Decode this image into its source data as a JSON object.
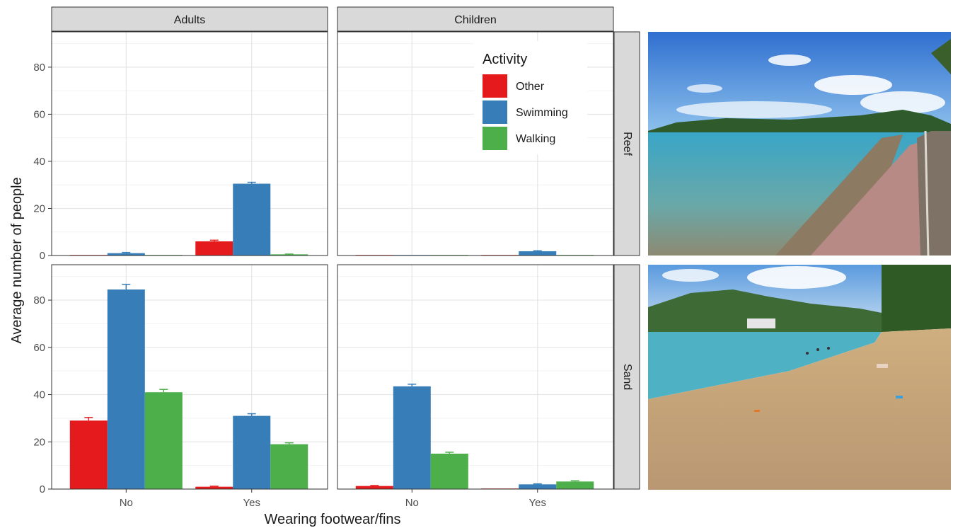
{
  "chart_data": {
    "type": "bar",
    "ylabel": "Average number of people",
    "xlabel": "Wearing footwear/fins",
    "categories": [
      "No",
      "Yes"
    ],
    "column_facets": [
      "Adults",
      "Children"
    ],
    "row_facets": [
      "Reef",
      "Sand"
    ],
    "ylim": [
      0,
      95
    ],
    "yticks": [
      0,
      20,
      40,
      60,
      80
    ],
    "grid": true,
    "legend": {
      "title": "Activity",
      "placement": "inside-top-right",
      "entries": [
        "Other",
        "Swimming",
        "Walking"
      ]
    },
    "colors": {
      "Other": "#e41a1c",
      "Swimming": "#377eb8",
      "Walking": "#4daf4a"
    },
    "panels": [
      {
        "row": "Reef",
        "col": "Adults",
        "series": [
          {
            "name": "Other",
            "values": [
              0,
              6
            ],
            "err": [
              0,
              0.5
            ]
          },
          {
            "name": "Swimming",
            "values": [
              1,
              30.5
            ],
            "err": [
              0.3,
              0.6
            ]
          },
          {
            "name": "Walking",
            "values": [
              0,
              0.5
            ],
            "err": [
              0,
              0.1
            ]
          }
        ]
      },
      {
        "row": "Reef",
        "col": "Children",
        "series": [
          {
            "name": "Other",
            "values": [
              0,
              0
            ],
            "err": [
              0,
              0
            ]
          },
          {
            "name": "Swimming",
            "values": [
              0,
              1.8
            ],
            "err": [
              0,
              0.2
            ]
          },
          {
            "name": "Walking",
            "values": [
              0,
              0
            ],
            "err": [
              0,
              0
            ]
          }
        ]
      },
      {
        "row": "Sand",
        "col": "Adults",
        "series": [
          {
            "name": "Other",
            "values": [
              29,
              1
            ],
            "err": [
              1.3,
              0.2
            ]
          },
          {
            "name": "Swimming",
            "values": [
              84.5,
              31
            ],
            "err": [
              2.2,
              0.9
            ]
          },
          {
            "name": "Walking",
            "values": [
              41,
              19
            ],
            "err": [
              1.2,
              0.6
            ]
          }
        ]
      },
      {
        "row": "Sand",
        "col": "Children",
        "series": [
          {
            "name": "Other",
            "values": [
              1.3,
              0
            ],
            "err": [
              0.2,
              0
            ]
          },
          {
            "name": "Swimming",
            "values": [
              43.5,
              2
            ],
            "err": [
              0.9,
              0.2
            ]
          },
          {
            "name": "Walking",
            "values": [
              15,
              3.2
            ],
            "err": [
              0.6,
              0.3
            ]
          }
        ]
      }
    ]
  },
  "photos": [
    {
      "name": "reef-beach-photo",
      "colors": {
        "sky": "#3f86d6",
        "water": "#4aa6c2",
        "shore": "#9c8a73",
        "wall": "#b98b84"
      }
    },
    {
      "name": "sand-beach-photo",
      "colors": {
        "sky": "#6ea7de",
        "water": "#4fb2c4",
        "sand": "#c7a77c",
        "trees": "#3e6b35"
      }
    }
  ]
}
